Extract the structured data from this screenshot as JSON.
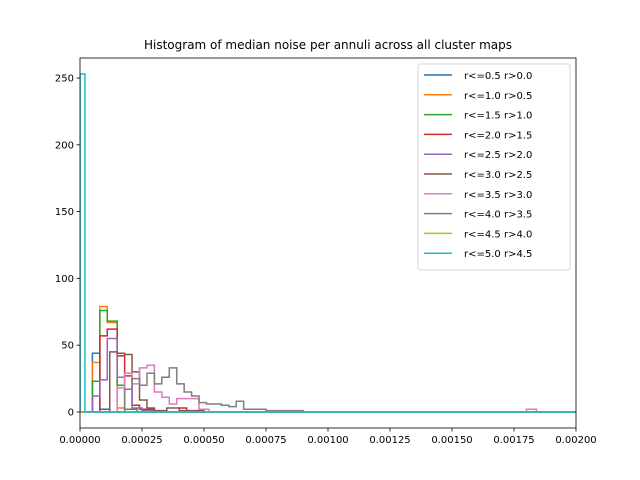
{
  "chart_data": {
    "type": "histogram",
    "title": "Histogram of median noise per annuli across all cluster maps",
    "xlabel": "",
    "ylabel": "",
    "xlim": [
      0,
      0.002
    ],
    "ylim": [
      -12,
      265
    ],
    "x_ticks": [
      0,
      0.00025,
      0.0005,
      0.00075,
      0.001,
      0.00125,
      0.0015,
      0.00175,
      0.002
    ],
    "x_tick_labels": [
      "0.00000",
      "0.00025",
      "0.00050",
      "0.00075",
      "0.00100",
      "0.00125",
      "0.00150",
      "0.00175",
      "0.00200"
    ],
    "y_ticks": [
      0,
      50,
      100,
      150,
      200,
      250
    ],
    "y_tick_labels": [
      "0",
      "50",
      "100",
      "150",
      "200",
      "250"
    ],
    "grid": false,
    "legend_position": "top-right",
    "series": [
      {
        "name": "r<=0.5  r>0.0",
        "color": "#1f77b4",
        "points": [
          [
            0.0,
            0
          ],
          [
            5e-05,
            0
          ],
          [
            5e-05,
            44
          ],
          [
            8e-05,
            44
          ],
          [
            8e-05,
            2
          ],
          [
            0.00012,
            2
          ],
          [
            0.00012,
            0
          ],
          [
            0.002,
            0
          ]
        ]
      },
      {
        "name": "r<=1.0  r>0.5",
        "color": "#ff7f0e",
        "points": [
          [
            0.0,
            0
          ],
          [
            5e-05,
            0
          ],
          [
            5e-05,
            37
          ],
          [
            8e-05,
            37
          ],
          [
            8e-05,
            79
          ],
          [
            0.00011,
            79
          ],
          [
            0.00011,
            67
          ],
          [
            0.00015,
            67
          ],
          [
            0.00015,
            3
          ],
          [
            0.00018,
            3
          ],
          [
            0.00018,
            0
          ],
          [
            0.002,
            0
          ]
        ]
      },
      {
        "name": "r<=1.5  r>1.0",
        "color": "#2ca02c",
        "points": [
          [
            0.0,
            0
          ],
          [
            5e-05,
            0
          ],
          [
            5e-05,
            23
          ],
          [
            8e-05,
            23
          ],
          [
            8e-05,
            76
          ],
          [
            0.00011,
            76
          ],
          [
            0.00011,
            68
          ],
          [
            0.00015,
            68
          ],
          [
            0.00015,
            20
          ],
          [
            0.00018,
            20
          ],
          [
            0.00018,
            2
          ],
          [
            0.00023,
            2
          ],
          [
            0.00023,
            0
          ],
          [
            0.002,
            0
          ]
        ]
      },
      {
        "name": "r<=2.0  r>1.5",
        "color": "#d62728",
        "points": [
          [
            0.0,
            0
          ],
          [
            8e-05,
            0
          ],
          [
            8e-05,
            57
          ],
          [
            0.00011,
            57
          ],
          [
            0.00011,
            62
          ],
          [
            0.00015,
            62
          ],
          [
            0.00015,
            42
          ],
          [
            0.00018,
            42
          ],
          [
            0.00018,
            27
          ],
          [
            0.00021,
            27
          ],
          [
            0.00021,
            5
          ],
          [
            0.00024,
            5
          ],
          [
            0.00024,
            2
          ],
          [
            0.0003,
            2
          ],
          [
            0.0003,
            0
          ],
          [
            0.0004,
            0
          ],
          [
            0.0004,
            3
          ],
          [
            0.00043,
            3
          ],
          [
            0.00043,
            0
          ],
          [
            0.002,
            0
          ]
        ]
      },
      {
        "name": "r<=2.5  r>2.0",
        "color": "#9467bd",
        "points": [
          [
            0.0,
            0
          ],
          [
            5e-05,
            0
          ],
          [
            5e-05,
            12
          ],
          [
            8e-05,
            12
          ],
          [
            8e-05,
            24
          ],
          [
            0.00011,
            24
          ],
          [
            0.00011,
            55
          ],
          [
            0.00015,
            55
          ],
          [
            0.00015,
            26
          ],
          [
            0.00018,
            26
          ],
          [
            0.00018,
            17
          ],
          [
            0.00021,
            17
          ],
          [
            0.00021,
            3
          ],
          [
            0.00025,
            3
          ],
          [
            0.00025,
            1
          ],
          [
            0.0003,
            1
          ],
          [
            0.0003,
            0
          ],
          [
            0.002,
            0
          ]
        ]
      },
      {
        "name": "r<=3.0  r>2.5",
        "color": "#8c564b",
        "points": [
          [
            0.0,
            0
          ],
          [
            0.00012,
            0
          ],
          [
            0.00012,
            45
          ],
          [
            0.00015,
            45
          ],
          [
            0.00015,
            44
          ],
          [
            0.00018,
            44
          ],
          [
            0.00018,
            43
          ],
          [
            0.00021,
            43
          ],
          [
            0.00021,
            30
          ],
          [
            0.00024,
            30
          ],
          [
            0.00024,
            9
          ],
          [
            0.00027,
            9
          ],
          [
            0.00027,
            3
          ],
          [
            0.0003,
            3
          ],
          [
            0.0003,
            1
          ],
          [
            0.00035,
            1
          ],
          [
            0.00035,
            3
          ],
          [
            0.0004,
            3
          ],
          [
            0.0004,
            1
          ],
          [
            0.0005,
            1
          ],
          [
            0.0005,
            0
          ],
          [
            0.002,
            0
          ]
        ]
      },
      {
        "name": "r<=3.5  r>3.0",
        "color": "#e377c2",
        "points": [
          [
            0.0,
            0
          ],
          [
            0.00015,
            0
          ],
          [
            0.00015,
            18
          ],
          [
            0.00018,
            18
          ],
          [
            0.00018,
            29
          ],
          [
            0.00021,
            29
          ],
          [
            0.00021,
            21
          ],
          [
            0.00024,
            21
          ],
          [
            0.00024,
            33
          ],
          [
            0.00027,
            33
          ],
          [
            0.00027,
            35
          ],
          [
            0.0003,
            35
          ],
          [
            0.0003,
            15
          ],
          [
            0.00033,
            15
          ],
          [
            0.00033,
            11
          ],
          [
            0.00036,
            11
          ],
          [
            0.00036,
            6
          ],
          [
            0.00039,
            6
          ],
          [
            0.00039,
            10
          ],
          [
            0.00042,
            10
          ],
          [
            0.00042,
            10
          ],
          [
            0.00048,
            10
          ],
          [
            0.00048,
            2
          ],
          [
            0.00052,
            2
          ],
          [
            0.00052,
            0
          ],
          [
            0.0018,
            0
          ],
          [
            0.0018,
            2
          ],
          [
            0.00184,
            2
          ],
          [
            0.00184,
            0
          ],
          [
            0.002,
            0
          ]
        ]
      },
      {
        "name": "r<=4.0  r>3.5",
        "color": "#7f7f7f",
        "points": [
          [
            0.0,
            0
          ],
          [
            0.00018,
            0
          ],
          [
            0.00018,
            17
          ],
          [
            0.00021,
            17
          ],
          [
            0.00021,
            25
          ],
          [
            0.00024,
            25
          ],
          [
            0.00024,
            20
          ],
          [
            0.00027,
            20
          ],
          [
            0.00027,
            29
          ],
          [
            0.0003,
            29
          ],
          [
            0.0003,
            21
          ],
          [
            0.00033,
            21
          ],
          [
            0.00033,
            26
          ],
          [
            0.00036,
            26
          ],
          [
            0.00036,
            33
          ],
          [
            0.00039,
            33
          ],
          [
            0.00039,
            21
          ],
          [
            0.00042,
            21
          ],
          [
            0.00042,
            15
          ],
          [
            0.00045,
            15
          ],
          [
            0.00045,
            12
          ],
          [
            0.00048,
            12
          ],
          [
            0.00048,
            7
          ],
          [
            0.00051,
            7
          ],
          [
            0.00051,
            6
          ],
          [
            0.00054,
            6
          ],
          [
            0.00054,
            6
          ],
          [
            0.00057,
            6
          ],
          [
            0.00057,
            5
          ],
          [
            0.0006,
            5
          ],
          [
            0.0006,
            4
          ],
          [
            0.00063,
            4
          ],
          [
            0.00063,
            8
          ],
          [
            0.00066,
            8
          ],
          [
            0.00066,
            2
          ],
          [
            0.00075,
            2
          ],
          [
            0.00075,
            1
          ],
          [
            0.0009,
            1
          ],
          [
            0.0009,
            0
          ],
          [
            0.002,
            0
          ]
        ]
      },
      {
        "name": "r<=4.5  r>4.0",
        "color": "#bcbd22",
        "points": [
          [
            0.0,
            0
          ],
          [
            0.002,
            0
          ]
        ]
      },
      {
        "name": "r<=5.0  r>4.5",
        "color": "#17becf",
        "points": [
          [
            0.0,
            0
          ],
          [
            0.0,
            253
          ],
          [
            2e-05,
            253
          ],
          [
            2e-05,
            0
          ],
          [
            0.002,
            0
          ]
        ]
      }
    ]
  }
}
